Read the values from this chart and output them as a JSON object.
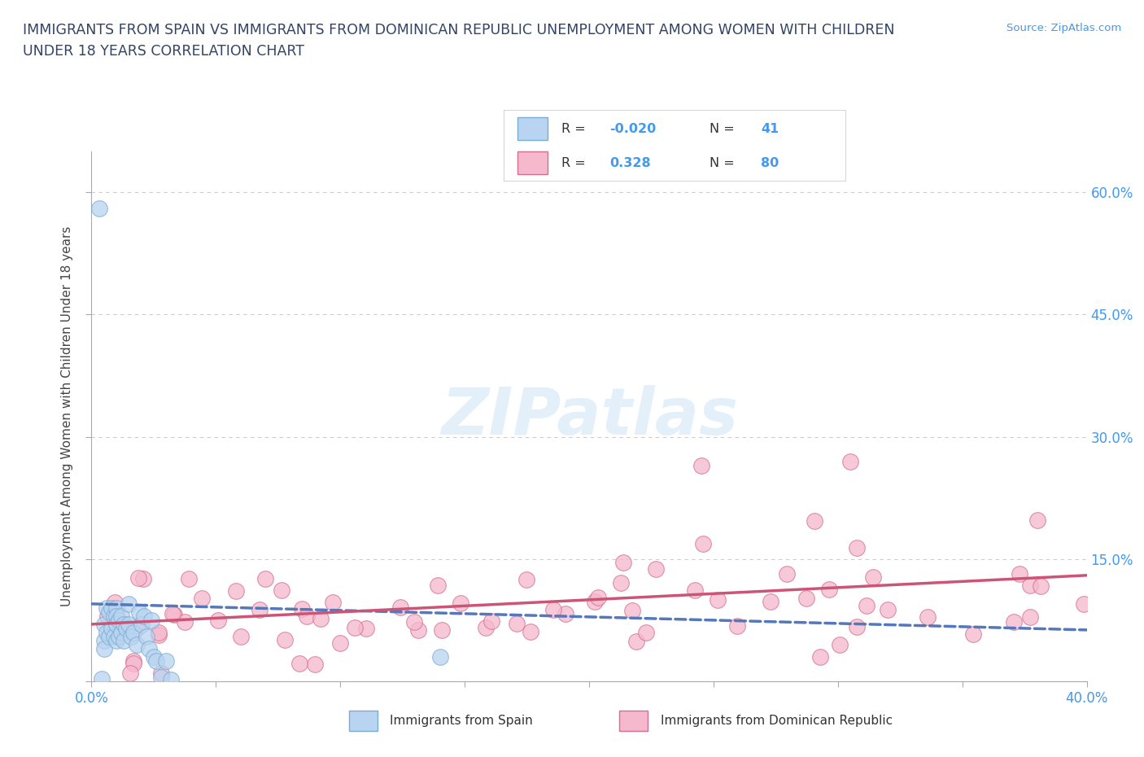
{
  "title_line1": "IMMIGRANTS FROM SPAIN VS IMMIGRANTS FROM DOMINICAN REPUBLIC UNEMPLOYMENT AMONG WOMEN WITH CHILDREN",
  "title_line2": "UNDER 18 YEARS CORRELATION CHART",
  "source_text": "Source: ZipAtlas.com",
  "ylabel": "Unemployment Among Women with Children Under 18 years",
  "xlim": [
    0.0,
    0.4
  ],
  "ylim": [
    0.0,
    0.65
  ],
  "x_ticks": [
    0.0,
    0.05,
    0.1,
    0.15,
    0.2,
    0.25,
    0.3,
    0.35,
    0.4
  ],
  "y_ticks": [
    0.0,
    0.15,
    0.3,
    0.45,
    0.6
  ],
  "right_y_tick_labels": [
    "",
    "15.0%",
    "30.0%",
    "45.0%",
    "60.0%"
  ],
  "grid_color": "#cccccc",
  "background_color": "#ffffff",
  "watermark": "ZIPatlas",
  "legend_R1": "-0.020",
  "legend_N1": "41",
  "legend_R2": "0.328",
  "legend_N2": "80",
  "color_spain_fill": "#b8d4f0",
  "color_spain_edge": "#7bacd4",
  "color_dr_fill": "#f5b8cc",
  "color_dr_edge": "#d47090",
  "color_spain_line": "#5577bb",
  "color_dr_line": "#cc5577",
  "tick_color": "#4499ee",
  "title_color": "#334466",
  "label_color": "#444444"
}
